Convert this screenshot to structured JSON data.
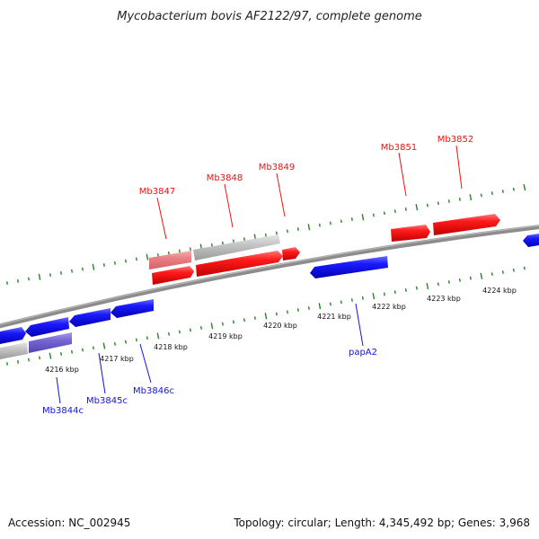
{
  "title": "Mycobacterium bovis AF2122/97, complete genome",
  "footer": {
    "accession": "Accession: NC_002945",
    "summary": "Topology: circular; Length: 4,345,492 bp; Genes: 3,968"
  },
  "colors": {
    "forward": "#ee1111",
    "reverse": "#1111ee",
    "forward_faded": "#e87d80",
    "reverse_faded": "#6f5fcc",
    "pseudo": "#bbbbbb",
    "backbone": "#888888",
    "ticks": "#228822"
  },
  "kbp_labels": [
    "4216 kbp",
    "4217 kbp",
    "4218 kbp",
    "4219 kbp",
    "4220 kbp",
    "4221 kbp",
    "4222 kbp",
    "4223 kbp",
    "4224 kbp"
  ],
  "gene_labels": [
    {
      "name": "Mb3847",
      "strand": "forward"
    },
    {
      "name": "Mb3848",
      "strand": "forward"
    },
    {
      "name": "Mb3849",
      "strand": "forward"
    },
    {
      "name": "Mb3851",
      "strand": "forward"
    },
    {
      "name": "Mb3852",
      "strand": "forward"
    },
    {
      "name": "papA2",
      "strand": "reverse"
    },
    {
      "name": "Mb3844c",
      "strand": "reverse"
    },
    {
      "name": "Mb3845c",
      "strand": "reverse"
    },
    {
      "name": "Mb3846c",
      "strand": "reverse"
    }
  ]
}
